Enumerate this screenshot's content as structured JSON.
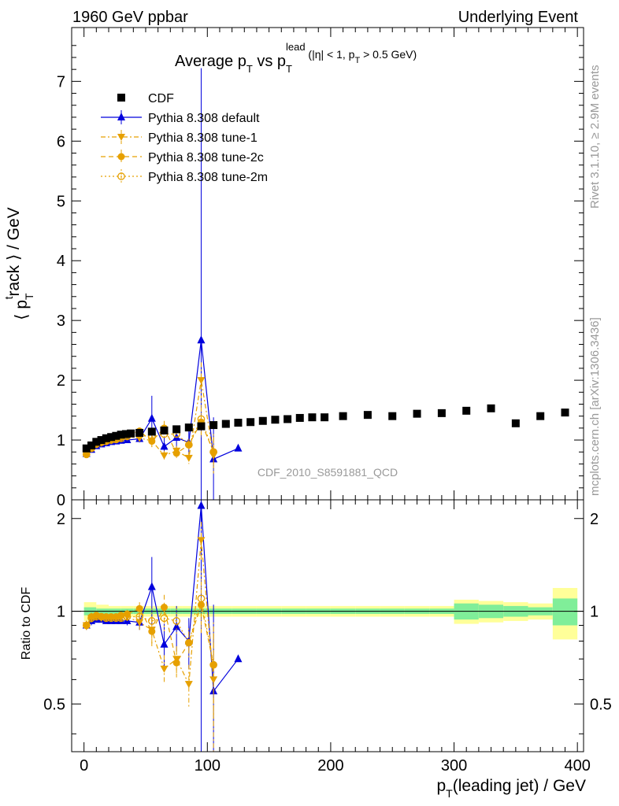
{
  "header": {
    "left": "1960 GeV ppbar",
    "right": "Underlying Event"
  },
  "side": {
    "rivet": "Rivet 3.1.10, ≥ 2.9M events",
    "mcplots": "mcplots.cern.ch [arXiv:1306.3436]"
  },
  "chart_data": {
    "type": "scatter",
    "title": "Average p_T vs p_T^lead (|η| < 1, p_T > 0.5 GeV)",
    "analysis": "CDF_2010_S8591881_QCD",
    "xlabel": "p_T(leading jet) / GeV",
    "ylabel": "⟨ p_T^track ⟩ / GeV",
    "ratio_ylabel": "Ratio to CDF",
    "xlim": [
      -10,
      405
    ],
    "ylim": [
      0,
      7.9
    ],
    "ratio_ylim": [
      0.35,
      2.3
    ],
    "x_ticks": [
      0,
      100,
      200,
      300,
      400
    ],
    "y_ticks": [
      0,
      1,
      2,
      3,
      4,
      5,
      6,
      7
    ],
    "ratio_ticks": [
      0.5,
      1,
      2
    ],
    "legend_position": "top-left",
    "grid": false,
    "series": [
      {
        "name": "CDF",
        "color": "#000000",
        "marker": "square",
        "x": [
          2,
          6,
          10,
          14,
          18,
          22,
          26,
          30,
          34,
          38,
          45,
          55,
          65,
          75,
          85,
          95,
          105,
          115,
          125,
          135,
          145,
          155,
          165,
          175,
          185,
          195,
          210,
          230,
          250,
          270,
          290,
          310,
          330,
          350,
          370,
          390
        ],
        "y": [
          0.86,
          0.91,
          0.97,
          1.0,
          1.03,
          1.05,
          1.07,
          1.09,
          1.1,
          1.11,
          1.12,
          1.14,
          1.16,
          1.18,
          1.21,
          1.23,
          1.25,
          1.27,
          1.29,
          1.3,
          1.32,
          1.34,
          1.35,
          1.37,
          1.38,
          1.38,
          1.4,
          1.42,
          1.4,
          1.44,
          1.45,
          1.49,
          1.53,
          1.28,
          1.4,
          1.46
        ],
        "band_x": [
          0,
          10,
          20,
          30,
          40,
          50,
          60,
          70,
          80,
          90,
          100,
          120,
          140,
          160,
          180,
          200,
          220,
          240,
          260,
          280,
          300,
          320,
          340,
          360,
          380,
          400
        ],
        "band_stat": [
          0.03,
          0.02,
          0.02,
          0.02,
          0.02,
          0.02,
          0.02,
          0.02,
          0.02,
          0.02,
          0.02,
          0.02,
          0.02,
          0.02,
          0.02,
          0.02,
          0.02,
          0.02,
          0.02,
          0.02,
          0.06,
          0.05,
          0.04,
          0.03,
          0.1
        ],
        "band_tot": [
          0.07,
          0.05,
          0.04,
          0.04,
          0.04,
          0.04,
          0.04,
          0.04,
          0.04,
          0.04,
          0.04,
          0.04,
          0.04,
          0.04,
          0.04,
          0.04,
          0.04,
          0.04,
          0.04,
          0.04,
          0.09,
          0.08,
          0.07,
          0.06,
          0.19
        ]
      },
      {
        "name": "Pythia 8.308 default",
        "color": "#0000dd",
        "marker": "triangle-up",
        "line": "solid",
        "x": [
          2,
          6,
          10,
          14,
          18,
          22,
          26,
          30,
          35,
          45,
          55,
          65,
          75,
          85,
          95,
          105,
          125
        ],
        "y": [
          0.77,
          0.84,
          0.9,
          0.93,
          0.95,
          0.97,
          0.98,
          0.99,
          1.0,
          1.02,
          1.36,
          0.89,
          1.04,
          0.96,
          2.67,
          0.68,
          0.86
        ],
        "err": [
          0.03,
          0.03,
          0.02,
          0.02,
          0.02,
          0.02,
          0.02,
          0.03,
          0.04,
          0.06,
          0.38,
          0.17,
          0.2,
          0.2,
          4.55,
          0.7,
          0.0
        ],
        "ratio": [
          0.9,
          0.93,
          0.94,
          0.94,
          0.93,
          0.93,
          0.93,
          0.93,
          0.93,
          0.92,
          1.2,
          0.78,
          0.89,
          0.8,
          2.2,
          0.55,
          0.7
        ],
        "ratio_err": [
          0.03,
          0.03,
          0.02,
          0.02,
          0.02,
          0.02,
          0.02,
          0.02,
          0.03,
          0.05,
          0.3,
          0.13,
          0.15,
          0.15,
          3.5,
          0.5,
          0.0
        ]
      },
      {
        "name": "Pythia 8.308 tune-1",
        "color": "#e6a000",
        "marker": "triangle-down",
        "line": "dash-dot",
        "x": [
          2,
          6,
          10,
          14,
          18,
          22,
          26,
          30,
          35,
          45,
          55,
          65,
          75,
          85,
          95,
          105
        ],
        "y": [
          0.76,
          0.86,
          0.93,
          0.95,
          0.97,
          0.99,
          1.01,
          1.03,
          1.06,
          1.03,
          0.99,
          0.74,
          0.82,
          0.7,
          2.0,
          0.74
        ],
        "err": [
          0.03,
          0.03,
          0.02,
          0.02,
          0.02,
          0.02,
          0.02,
          0.03,
          0.04,
          0.06,
          0.1,
          0.08,
          0.08,
          0.1,
          0.3,
          0.3
        ],
        "ratio": [
          0.9,
          0.95,
          0.96,
          0.95,
          0.95,
          0.95,
          0.95,
          0.95,
          0.96,
          0.92,
          0.87,
          0.65,
          0.7,
          0.58,
          1.7,
          0.6
        ],
        "ratio_err": [
          0.03,
          0.03,
          0.02,
          0.02,
          0.02,
          0.02,
          0.02,
          0.02,
          0.03,
          0.05,
          0.09,
          0.07,
          0.07,
          0.09,
          0.25,
          0.25
        ]
      },
      {
        "name": "Pythia 8.308 tune-2c",
        "color": "#e6a000",
        "marker": "circle-filled",
        "line": "dashed",
        "x": [
          2,
          6,
          10,
          14,
          18,
          22,
          26,
          30,
          35,
          45,
          55,
          65,
          75,
          85,
          95,
          105
        ],
        "y": [
          0.76,
          0.87,
          0.94,
          0.96,
          0.98,
          1.0,
          1.02,
          1.05,
          1.08,
          1.15,
          0.98,
          1.2,
          0.78,
          0.92,
          1.3,
          0.8
        ],
        "err": [
          0.03,
          0.03,
          0.02,
          0.02,
          0.02,
          0.02,
          0.02,
          0.03,
          0.04,
          0.06,
          0.1,
          0.12,
          0.08,
          0.08,
          0.25,
          0.25
        ],
        "ratio": [
          0.9,
          0.96,
          0.97,
          0.96,
          0.96,
          0.96,
          0.96,
          0.97,
          0.98,
          1.02,
          0.86,
          1.03,
          0.68,
          0.79,
          1.05,
          0.67
        ],
        "ratio_err": [
          0.03,
          0.03,
          0.02,
          0.02,
          0.02,
          0.02,
          0.02,
          0.02,
          0.03,
          0.05,
          0.09,
          0.1,
          0.07,
          0.07,
          0.2,
          0.22
        ]
      },
      {
        "name": "Pythia 8.308 tune-2m",
        "color": "#e6a000",
        "marker": "circle-open",
        "line": "dotted",
        "x": [
          2,
          6,
          10,
          14,
          18,
          22,
          26,
          30,
          35,
          45,
          55,
          65,
          75,
          85,
          95,
          105
        ],
        "y": [
          0.76,
          0.86,
          0.93,
          0.96,
          0.98,
          1.0,
          1.01,
          1.03,
          1.06,
          1.08,
          1.05,
          1.1,
          1.1,
          0.92,
          1.35,
          0.8
        ],
        "err": [
          0.03,
          0.03,
          0.02,
          0.02,
          0.02,
          0.02,
          0.02,
          0.03,
          0.04,
          0.06,
          0.1,
          0.1,
          0.1,
          0.1,
          0.3,
          0.3
        ],
        "ratio": [
          0.9,
          0.95,
          0.96,
          0.96,
          0.95,
          0.95,
          0.95,
          0.95,
          0.96,
          0.96,
          0.93,
          0.95,
          0.93,
          0.79,
          1.1,
          0.67
        ],
        "ratio_err": [
          0.03,
          0.03,
          0.02,
          0.02,
          0.02,
          0.02,
          0.02,
          0.02,
          0.03,
          0.05,
          0.09,
          0.09,
          0.09,
          0.09,
          0.25,
          0.25
        ]
      }
    ]
  }
}
